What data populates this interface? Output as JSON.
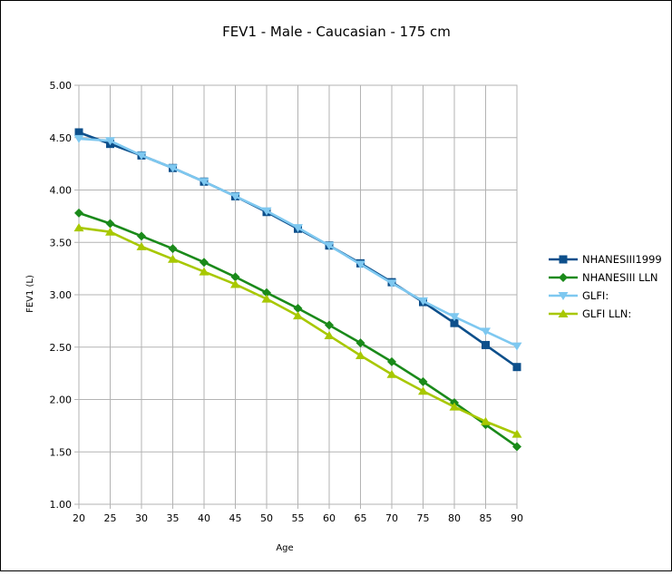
{
  "chart_data": {
    "type": "line",
    "title": "FEV1 - Male - Caucasian - 175 cm",
    "xlabel": "Age",
    "ylabel": "FEV1 (L)",
    "x": [
      20,
      25,
      30,
      35,
      40,
      45,
      50,
      55,
      60,
      65,
      70,
      75,
      80,
      85,
      90
    ],
    "xlim": [
      20,
      90
    ],
    "ylim": [
      1.0,
      5.0
    ],
    "yticks": [
      "1.00",
      "1.50",
      "2.00",
      "2.50",
      "3.00",
      "3.50",
      "4.00",
      "4.50",
      "5.00"
    ],
    "xticks": [
      "20",
      "25",
      "30",
      "35",
      "40",
      "45",
      "50",
      "55",
      "60",
      "65",
      "70",
      "75",
      "80",
      "85",
      "90"
    ],
    "grid": "horizontal and vertical",
    "legend_position": "right",
    "series": [
      {
        "name": "NHANESIII1999",
        "color": "#0d4f8b",
        "marker": "square",
        "values": [
          4.55,
          4.44,
          4.33,
          4.21,
          4.08,
          3.94,
          3.79,
          3.63,
          3.47,
          3.3,
          3.12,
          2.93,
          2.73,
          2.52,
          2.31
        ]
      },
      {
        "name": "NHANESIII LLN",
        "color": "#1a8a1a",
        "marker": "diamond",
        "values": [
          3.78,
          3.68,
          3.56,
          3.44,
          3.31,
          3.17,
          3.02,
          2.87,
          2.71,
          2.54,
          2.36,
          2.17,
          1.97,
          1.76,
          1.55
        ]
      },
      {
        "name": "GLFI:",
        "color": "#7ec8f0",
        "marker": "triangle-down",
        "values": [
          4.49,
          4.47,
          4.33,
          4.21,
          4.08,
          3.94,
          3.8,
          3.64,
          3.47,
          3.29,
          3.11,
          2.94,
          2.79,
          2.65,
          2.51
        ]
      },
      {
        "name": "GLFI LLN:",
        "color": "#a8c800",
        "marker": "triangle-up",
        "values": [
          3.64,
          3.6,
          3.46,
          3.34,
          3.22,
          3.1,
          2.96,
          2.8,
          2.61,
          2.42,
          2.24,
          2.08,
          1.93,
          1.79,
          1.67
        ]
      }
    ]
  }
}
